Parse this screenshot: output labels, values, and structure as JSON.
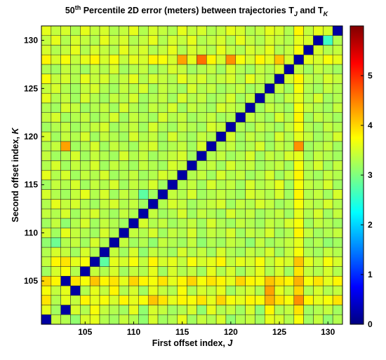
{
  "chart_data": {
    "type": "heatmap",
    "title": {
      "prefix": "50",
      "prefix_sup": "th",
      "main": " Percentile 2D error (meters) between trajectories T",
      "sub_j": "J",
      "and": " and T",
      "sub_k": "K"
    },
    "xlabel": {
      "text": "First offset index, ",
      "var": "J"
    },
    "ylabel": {
      "text": "Second offset index, ",
      "var": "K"
    },
    "x_range": [
      101,
      131
    ],
    "y_range": [
      101,
      131
    ],
    "x_ticks": [
      105,
      110,
      115,
      120,
      125,
      130
    ],
    "y_ticks": [
      105,
      110,
      115,
      120,
      125,
      130
    ],
    "colorbar": {
      "min": 0,
      "max": 6,
      "ticks": [
        0,
        1,
        2,
        3,
        4,
        5
      ],
      "colormap": "jet"
    },
    "diagonal_value": 0.2,
    "values": [
      [
        0.2,
        3.4,
        3.3,
        3.1,
        3.5,
        3.6,
        3.3,
        3.2,
        3.4,
        3.3,
        3.1,
        3.5,
        3.2,
        3.3,
        3.6,
        3.2,
        3.4,
        3.3,
        3.5,
        3.1,
        3.3,
        3.4,
        3.2,
        3.6,
        3.5,
        3.3,
        3.7,
        3.2,
        3.4,
        3.1,
        3.3
      ],
      [
        3.6,
        3.2,
        0.2,
        3.5,
        3.3,
        3.7,
        3.4,
        3.3,
        3.2,
        3.6,
        3.1,
        3.5,
        3.4,
        3.2,
        3.3,
        3.5,
        3.1,
        3.6,
        3.3,
        3.4,
        3.2,
        3.5,
        3.1,
        3.8,
        3.3,
        3.4,
        3.9,
        3.2,
        3.3,
        3.4,
        3.2
      ],
      [
        3.9,
        3.3,
        3.6,
        3.4,
        3.8,
        3.6,
        3.7,
        3.5,
        3.8,
        3.6,
        3.7,
        4.1,
        3.9,
        3.6,
        3.8,
        3.7,
        3.9,
        3.6,
        4.0,
        3.7,
        3.6,
        3.8,
        3.7,
        4.2,
        3.9,
        3.7,
        4.4,
        3.8,
        3.6,
        3.7,
        3.9
      ],
      [
        3.7,
        3.4,
        3.6,
        0.2,
        3.3,
        3.6,
        3.4,
        3.8,
        3.3,
        3.5,
        3.2,
        3.6,
        3.4,
        3.3,
        3.7,
        3.3,
        3.5,
        3.4,
        3.6,
        3.2,
        3.4,
        3.5,
        3.3,
        4.3,
        3.6,
        3.4,
        4.0,
        3.3,
        3.5,
        3.3,
        3.4
      ],
      [
        4.0,
        3.8,
        0.2,
        3.9,
        3.7,
        4.1,
        3.8,
        3.9,
        3.6,
        4.0,
        3.8,
        3.7,
        3.9,
        3.6,
        3.8,
        4.0,
        3.7,
        3.9,
        3.8,
        3.6,
        4.0,
        3.8,
        3.7,
        4.1,
        3.9,
        3.8,
        4.2,
        3.7,
        3.9,
        3.6,
        3.8
      ],
      [
        3.2,
        3.5,
        3.7,
        3.3,
        0.2,
        3.4,
        3.3,
        3.5,
        3.2,
        3.4,
        3.3,
        3.6,
        3.2,
        3.5,
        3.3,
        3.4,
        3.2,
        3.6,
        3.3,
        3.5,
        3.2,
        3.4,
        3.6,
        3.3,
        3.5,
        3.2,
        3.9,
        3.4,
        3.3,
        3.5,
        3.3
      ],
      [
        3.4,
        3.8,
        3.9,
        3.6,
        3.7,
        0.2,
        2.8,
        3.6,
        3.5,
        3.7,
        3.4,
        3.8,
        3.5,
        3.6,
        3.4,
        3.7,
        3.5,
        3.6,
        3.8,
        3.4,
        3.6,
        3.5,
        3.7,
        3.4,
        3.6,
        3.5,
        4.1,
        3.6,
        3.4,
        3.7,
        3.5
      ],
      [
        3.3,
        3.5,
        3.4,
        3.2,
        3.5,
        3.3,
        0.2,
        3.4,
        3.2,
        3.5,
        3.1,
        3.4,
        3.3,
        3.2,
        3.5,
        3.3,
        3.4,
        3.2,
        3.5,
        3.3,
        3.2,
        3.4,
        3.3,
        3.5,
        3.2,
        3.4,
        3.7,
        3.3,
        3.2,
        3.4,
        3.3
      ],
      [
        3.1,
        2.9,
        3.3,
        3.4,
        3.2,
        3.5,
        3.3,
        0.2,
        3.4,
        3.2,
        3.3,
        3.1,
        3.4,
        3.3,
        3.2,
        3.4,
        3.1,
        3.3,
        3.2,
        3.4,
        3.3,
        3.1,
        3.4,
        3.2,
        3.3,
        3.4,
        3.6,
        3.2,
        3.3,
        3.1,
        3.2
      ],
      [
        3.5,
        3.2,
        3.6,
        3.4,
        3.3,
        3.2,
        3.5,
        3.3,
        0.2,
        3.4,
        3.3,
        3.5,
        3.2,
        3.4,
        3.3,
        3.5,
        3.2,
        3.4,
        3.3,
        3.5,
        3.2,
        3.4,
        3.3,
        3.5,
        3.2,
        3.3,
        3.8,
        3.4,
        3.2,
        3.3,
        3.4
      ],
      [
        3.2,
        3.4,
        3.1,
        3.3,
        3.5,
        3.2,
        3.4,
        3.3,
        3.2,
        0.2,
        3.5,
        3.3,
        3.4,
        3.2,
        3.3,
        3.4,
        3.2,
        3.5,
        3.3,
        3.2,
        3.4,
        3.3,
        3.2,
        3.4,
        3.3,
        3.5,
        3.7,
        3.2,
        3.4,
        3.3,
        3.2
      ],
      [
        3.4,
        3.3,
        3.5,
        3.2,
        3.4,
        3.5,
        3.3,
        3.2,
        3.4,
        3.3,
        0.2,
        3.4,
        3.2,
        3.3,
        3.5,
        3.2,
        3.4,
        3.3,
        3.2,
        3.5,
        3.3,
        3.4,
        3.2,
        3.3,
        3.4,
        3.2,
        3.6,
        3.3,
        3.5,
        3.2,
        3.4
      ],
      [
        3.3,
        3.6,
        3.4,
        3.5,
        3.3,
        3.2,
        3.4,
        3.5,
        3.3,
        3.4,
        3.2,
        0.2,
        3.3,
        3.5,
        3.4,
        3.2,
        3.3,
        3.4,
        3.5,
        3.2,
        3.4,
        3.3,
        3.5,
        3.4,
        3.2,
        3.3,
        3.7,
        3.4,
        3.3,
        3.5,
        3.3
      ],
      [
        3.5,
        3.3,
        3.2,
        3.4,
        3.6,
        3.3,
        3.5,
        3.2,
        3.4,
        3.3,
        2.8,
        3.2,
        0.2,
        3.4,
        3.3,
        3.5,
        3.2,
        3.3,
        3.4,
        3.3,
        3.2,
        3.5,
        3.4,
        3.3,
        3.5,
        3.2,
        3.8,
        3.3,
        3.4,
        3.2,
        3.5
      ],
      [
        3.2,
        3.4,
        3.3,
        3.5,
        3.2,
        3.4,
        3.3,
        3.5,
        3.2,
        3.4,
        3.3,
        3.5,
        3.2,
        0.2,
        3.3,
        3.4,
        3.2,
        3.5,
        3.3,
        3.4,
        3.2,
        3.5,
        3.3,
        3.4,
        3.6,
        3.2,
        3.7,
        3.4,
        3.3,
        3.5,
        3.2
      ],
      [
        3.6,
        3.3,
        3.5,
        3.2,
        3.4,
        3.3,
        3.5,
        3.2,
        3.3,
        3.4,
        3.2,
        3.3,
        3.5,
        3.4,
        0.2,
        3.3,
        3.4,
        3.2,
        3.5,
        3.3,
        3.4,
        3.2,
        3.3,
        3.5,
        3.2,
        3.4,
        3.8,
        3.3,
        3.2,
        3.4,
        3.3
      ],
      [
        3.3,
        3.5,
        3.2,
        3.4,
        3.3,
        3.5,
        3.2,
        3.4,
        3.3,
        3.2,
        3.4,
        3.3,
        3.2,
        3.5,
        3.4,
        0.2,
        3.3,
        3.4,
        3.2,
        3.5,
        3.3,
        3.4,
        3.2,
        3.3,
        3.4,
        3.2,
        3.7,
        3.3,
        3.5,
        3.2,
        3.4
      ],
      [
        3.4,
        3.2,
        3.3,
        3.5,
        3.2,
        3.4,
        3.3,
        3.2,
        3.5,
        3.3,
        3.4,
        3.2,
        3.3,
        3.4,
        3.5,
        3.2,
        0.2,
        3.3,
        3.4,
        3.2,
        3.3,
        3.5,
        3.2,
        3.4,
        3.3,
        3.5,
        3.6,
        3.2,
        3.4,
        3.3,
        3.2
      ],
      [
        3.3,
        3.4,
        4.3,
        3.2,
        3.3,
        3.5,
        3.2,
        3.4,
        3.3,
        3.2,
        3.4,
        3.5,
        3.2,
        3.3,
        3.4,
        3.2,
        3.5,
        0.2,
        3.3,
        3.4,
        3.2,
        3.3,
        3.5,
        3.2,
        3.4,
        3.3,
        4.4,
        3.2,
        3.3,
        3.4,
        3.2
      ],
      [
        3.5,
        3.2,
        3.4,
        3.3,
        3.5,
        3.2,
        3.4,
        3.3,
        3.2,
        3.5,
        3.3,
        3.4,
        3.2,
        3.5,
        3.3,
        3.2,
        3.4,
        3.3,
        0.2,
        3.5,
        3.2,
        3.4,
        3.3,
        3.2,
        3.5,
        3.3,
        3.6,
        3.4,
        3.2,
        3.3,
        3.5
      ],
      [
        3.2,
        3.3,
        3.4,
        3.2,
        3.3,
        3.4,
        3.5,
        3.2,
        3.3,
        3.4,
        3.2,
        3.5,
        3.3,
        3.2,
        3.4,
        3.3,
        3.2,
        3.5,
        3.4,
        0.2,
        3.3,
        3.2,
        3.4,
        3.3,
        3.2,
        3.4,
        3.7,
        3.3,
        3.2,
        3.4,
        3.3
      ],
      [
        3.4,
        3.5,
        3.2,
        3.3,
        3.4,
        3.2,
        3.3,
        3.5,
        3.2,
        3.4,
        3.3,
        3.2,
        3.5,
        3.3,
        3.4,
        3.2,
        3.3,
        3.4,
        3.2,
        3.3,
        0.2,
        3.4,
        3.3,
        3.2,
        3.5,
        3.3,
        3.8,
        3.2,
        3.4,
        3.3,
        3.2
      ],
      [
        3.3,
        3.2,
        3.5,
        3.4,
        3.2,
        3.3,
        3.4,
        3.2,
        3.5,
        3.3,
        3.2,
        3.4,
        3.3,
        3.5,
        3.2,
        3.4,
        3.3,
        3.2,
        3.5,
        3.4,
        3.3,
        0.2,
        3.2,
        3.4,
        3.3,
        3.2,
        3.7,
        3.4,
        3.3,
        3.2,
        3.4
      ],
      [
        3.6,
        3.3,
        3.4,
        3.2,
        3.5,
        3.3,
        3.2,
        3.4,
        3.3,
        3.5,
        3.2,
        3.3,
        3.4,
        3.2,
        3.5,
        3.3,
        3.4,
        3.2,
        3.3,
        3.5,
        3.2,
        3.4,
        0.2,
        3.3,
        3.2,
        3.4,
        3.6,
        3.3,
        3.5,
        3.2,
        3.3
      ],
      [
        3.4,
        3.5,
        3.3,
        3.2,
        3.4,
        3.5,
        3.3,
        3.2,
        3.4,
        3.3,
        3.5,
        3.2,
        3.4,
        3.3,
        3.2,
        3.5,
        3.3,
        3.4,
        3.2,
        3.3,
        3.4,
        3.2,
        3.3,
        0.2,
        3.4,
        3.2,
        3.7,
        3.3,
        3.2,
        3.4,
        3.3
      ],
      [
        3.7,
        3.4,
        3.5,
        3.3,
        3.6,
        3.4,
        3.5,
        3.3,
        3.4,
        3.6,
        3.3,
        3.5,
        3.4,
        3.3,
        3.6,
        3.4,
        3.5,
        3.3,
        3.4,
        3.5,
        3.3,
        3.6,
        3.4,
        3.3,
        0.2,
        3.5,
        3.8,
        3.4,
        3.3,
        3.5,
        3.4
      ],
      [
        3.3,
        3.2,
        3.4,
        3.3,
        3.2,
        3.4,
        3.3,
        3.5,
        3.2,
        3.3,
        3.4,
        3.2,
        3.3,
        3.5,
        3.4,
        3.2,
        3.3,
        3.4,
        3.2,
        3.5,
        3.3,
        3.2,
        3.4,
        3.3,
        3.5,
        0.2,
        3.4,
        3.2,
        3.4,
        3.3,
        3.2
      ],
      [
        3.8,
        3.5,
        3.7,
        3.4,
        3.6,
        3.8,
        3.5,
        3.7,
        3.4,
        3.6,
        3.5,
        3.8,
        3.7,
        3.5,
        4.3,
        3.6,
        4.6,
        3.8,
        3.5,
        4.4,
        3.7,
        3.5,
        3.8,
        3.6,
        4.1,
        3.5,
        0.2,
        3.6,
        3.5,
        3.7,
        3.6
      ],
      [
        3.5,
        3.3,
        3.4,
        3.6,
        3.3,
        3.5,
        3.4,
        3.3,
        3.6,
        3.4,
        3.5,
        3.3,
        3.4,
        3.6,
        3.3,
        3.5,
        3.4,
        3.3,
        3.6,
        3.4,
        3.3,
        3.5,
        3.4,
        3.6,
        3.3,
        3.4,
        3.7,
        0.2,
        3.5,
        3.3,
        3.4
      ],
      [
        3.4,
        3.6,
        3.3,
        3.5,
        3.4,
        3.3,
        3.6,
        3.4,
        3.5,
        3.3,
        3.4,
        3.6,
        3.3,
        3.5,
        3.4,
        3.6,
        3.3,
        3.4,
        3.5,
        3.3,
        3.6,
        3.4,
        3.3,
        3.5,
        3.4,
        3.3,
        3.6,
        3.5,
        0.2,
        2.6,
        3.3
      ],
      [
        3.6,
        3.4,
        3.5,
        3.3,
        3.6,
        3.4,
        3.5,
        3.3,
        3.4,
        3.6,
        3.3,
        3.5,
        3.4,
        3.3,
        3.6,
        3.4,
        3.5,
        3.3,
        3.4,
        3.6,
        3.5,
        3.3,
        3.4,
        3.6,
        3.5,
        3.3,
        3.8,
        3.4,
        3.6,
        3.5,
        0.2
      ]
    ]
  }
}
